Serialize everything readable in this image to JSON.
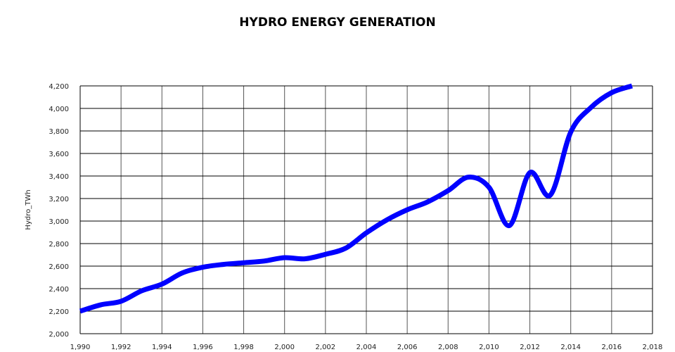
{
  "chart_data": {
    "type": "line",
    "title": "HYDRO ENERGY GENERATION",
    "xlabel": "",
    "ylabel": "Hydro_TWh",
    "xlim": [
      1990,
      2018
    ],
    "ylim": [
      2000,
      4200
    ],
    "x_ticks": [
      1990,
      1992,
      1994,
      1996,
      1998,
      2000,
      2002,
      2004,
      2006,
      2008,
      2010,
      2012,
      2014,
      2016,
      2018
    ],
    "x_tick_labels": [
      "1,990",
      "1,992",
      "1,994",
      "1,996",
      "1,998",
      "2,000",
      "2,002",
      "2,004",
      "2,006",
      "2,008",
      "2,010",
      "2,012",
      "2,014",
      "2,016",
      "2,018"
    ],
    "y_ticks": [
      2000,
      2200,
      2400,
      2600,
      2800,
      3000,
      3200,
      3400,
      3600,
      3800,
      4000,
      4200
    ],
    "y_tick_labels": [
      "2,000",
      "2,200",
      "2,400",
      "2,600",
      "2,800",
      "3,000",
      "3,200",
      "3,400",
      "3,600",
      "3,800",
      "4,000",
      "4,200"
    ],
    "grid": true,
    "series": [
      {
        "name": "Hydro_TWh",
        "color": "#0000ff",
        "x": [
          1990,
          1991,
          1992,
          1993,
          1994,
          1995,
          1996,
          1997,
          1998,
          1999,
          2000,
          2001,
          2002,
          2003,
          2004,
          2005,
          2006,
          2007,
          2008,
          2009,
          2010,
          2011,
          2012,
          2013,
          2014,
          2015,
          2016,
          2017
        ],
        "y": [
          2200,
          2256,
          2288,
          2380,
          2440,
          2540,
          2590,
          2615,
          2630,
          2645,
          2675,
          2665,
          2705,
          2760,
          2895,
          3010,
          3100,
          3170,
          3270,
          3390,
          3300,
          2960,
          3430,
          3230,
          3790,
          4010,
          4140,
          4200
        ]
      }
    ]
  }
}
